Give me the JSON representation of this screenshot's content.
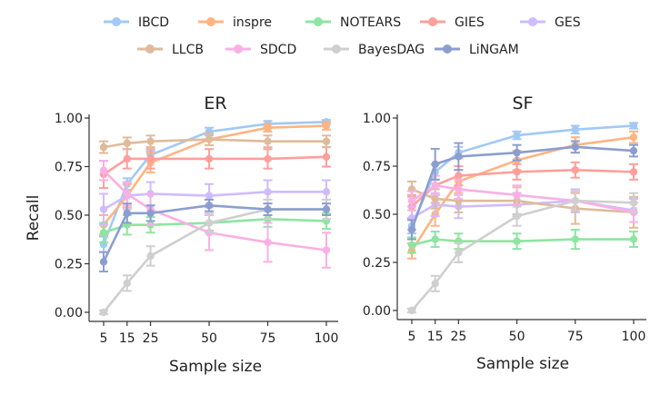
{
  "legend_items": [
    {
      "name": "IBCD",
      "color": "#a1c9f4"
    },
    {
      "name": "inspre",
      "color": "#ffb482"
    },
    {
      "name": "NOTEARS",
      "color": "#8de5a1"
    },
    {
      "name": "GIES",
      "color": "#ff9f9b"
    },
    {
      "name": "GES",
      "color": "#d0bbff"
    },
    {
      "name": "LLCB",
      "color": "#debb9b"
    },
    {
      "name": "SDCD",
      "color": "#fab0e4"
    },
    {
      "name": "BayesDAG",
      "color": "#cfcfcf"
    },
    {
      "name": "LiNGAM",
      "color": "#8c9ecf"
    }
  ],
  "chart_data": [
    {
      "type": "line",
      "title": "ER",
      "xlabel": "Sample size",
      "ylabel": "Recall",
      "x": [
        5,
        15,
        25,
        50,
        75,
        100
      ],
      "xticks": [
        "5",
        "15",
        "25",
        "50",
        "75",
        "100"
      ],
      "yticks": [
        "0.00",
        "0.25",
        "0.50",
        "0.75",
        "1.00"
      ],
      "ylim": [
        0,
        1.0
      ],
      "series": [
        {
          "name": "IBCD",
          "values": [
            0.35,
            0.66,
            0.81,
            0.93,
            0.97,
            0.98
          ],
          "err": [
            0.04,
            0.03,
            0.02,
            0.02,
            0.015,
            0.01
          ]
        },
        {
          "name": "inspre",
          "values": [
            0.45,
            0.6,
            0.77,
            0.89,
            0.95,
            0.96
          ],
          "err": [
            0.05,
            0.06,
            0.05,
            0.03,
            0.02,
            0.02
          ]
        },
        {
          "name": "NOTEARS",
          "values": [
            0.41,
            0.45,
            0.45,
            0.46,
            0.48,
            0.47
          ],
          "err": [
            0.05,
            0.05,
            0.04,
            0.04,
            0.04,
            0.04
          ]
        },
        {
          "name": "GIES",
          "values": [
            0.71,
            0.79,
            0.79,
            0.79,
            0.79,
            0.8
          ],
          "err": [
            0.07,
            0.05,
            0.05,
            0.05,
            0.05,
            0.05
          ]
        },
        {
          "name": "GES",
          "values": [
            0.53,
            0.6,
            0.61,
            0.6,
            0.62,
            0.62
          ],
          "err": [
            0.08,
            0.07,
            0.06,
            0.06,
            0.06,
            0.06
          ]
        },
        {
          "name": "LLCB",
          "values": [
            0.85,
            0.87,
            0.88,
            0.89,
            0.88,
            0.88
          ],
          "err": [
            0.03,
            0.03,
            0.03,
            0.03,
            0.03,
            0.03
          ]
        },
        {
          "name": "SDCD",
          "values": [
            0.73,
            0.61,
            0.53,
            0.41,
            0.36,
            0.32
          ],
          "err": [
            0.05,
            0.06,
            0.08,
            0.09,
            0.1,
            0.09
          ]
        },
        {
          "name": "BayesDAG",
          "values": [
            0.0,
            0.15,
            0.29,
            0.46,
            0.53,
            0.53
          ],
          "err": [
            0.01,
            0.04,
            0.05,
            0.05,
            0.05,
            0.05
          ]
        },
        {
          "name": "LiNGAM",
          "values": [
            0.26,
            0.51,
            0.51,
            0.55,
            0.53,
            0.53
          ],
          "err": [
            0.05,
            0.05,
            0.04,
            0.03,
            0.03,
            0.03
          ]
        }
      ]
    },
    {
      "type": "line",
      "title": "SF",
      "xlabel": "Sample size",
      "ylabel": "",
      "x": [
        5,
        15,
        25,
        50,
        75,
        100
      ],
      "xticks": [
        "5",
        "15",
        "25",
        "50",
        "75",
        "100"
      ],
      "yticks": [
        "0.00",
        "0.25",
        "0.50",
        "0.75",
        "1.00"
      ],
      "ylim": [
        0,
        1.0
      ],
      "series": [
        {
          "name": "IBCD",
          "values": [
            0.44,
            0.72,
            0.82,
            0.91,
            0.94,
            0.96
          ],
          "err": [
            0.04,
            0.04,
            0.03,
            0.02,
            0.02,
            0.015
          ]
        },
        {
          "name": "inspre",
          "values": [
            0.31,
            0.5,
            0.67,
            0.78,
            0.86,
            0.9
          ],
          "err": [
            0.04,
            0.06,
            0.06,
            0.05,
            0.04,
            0.03
          ]
        },
        {
          "name": "NOTEARS",
          "values": [
            0.34,
            0.37,
            0.36,
            0.36,
            0.37,
            0.37
          ],
          "err": [
            0.04,
            0.04,
            0.04,
            0.04,
            0.05,
            0.04
          ]
        },
        {
          "name": "GIES",
          "values": [
            0.54,
            0.65,
            0.7,
            0.72,
            0.73,
            0.72
          ],
          "err": [
            0.06,
            0.05,
            0.05,
            0.04,
            0.04,
            0.04
          ]
        },
        {
          "name": "GES",
          "values": [
            0.48,
            0.55,
            0.54,
            0.55,
            0.57,
            0.52
          ],
          "err": [
            0.06,
            0.06,
            0.06,
            0.06,
            0.06,
            0.06
          ]
        },
        {
          "name": "LLCB",
          "values": [
            0.63,
            0.58,
            0.57,
            0.57,
            0.53,
            0.51
          ],
          "err": [
            0.04,
            0.05,
            0.06,
            0.07,
            0.08,
            0.08
          ]
        },
        {
          "name": "SDCD",
          "values": [
            0.57,
            0.65,
            0.63,
            0.6,
            0.57,
            0.51
          ],
          "err": [
            0.05,
            0.05,
            0.05,
            0.05,
            0.05,
            0.05
          ]
        },
        {
          "name": "BayesDAG",
          "values": [
            0.0,
            0.14,
            0.3,
            0.49,
            0.57,
            0.56
          ],
          "err": [
            0.01,
            0.04,
            0.05,
            0.05,
            0.05,
            0.05
          ]
        },
        {
          "name": "LiNGAM",
          "values": [
            0.42,
            0.76,
            0.8,
            0.82,
            0.85,
            0.83
          ],
          "err": [
            0.05,
            0.08,
            0.07,
            0.04,
            0.03,
            0.03
          ]
        }
      ]
    }
  ]
}
